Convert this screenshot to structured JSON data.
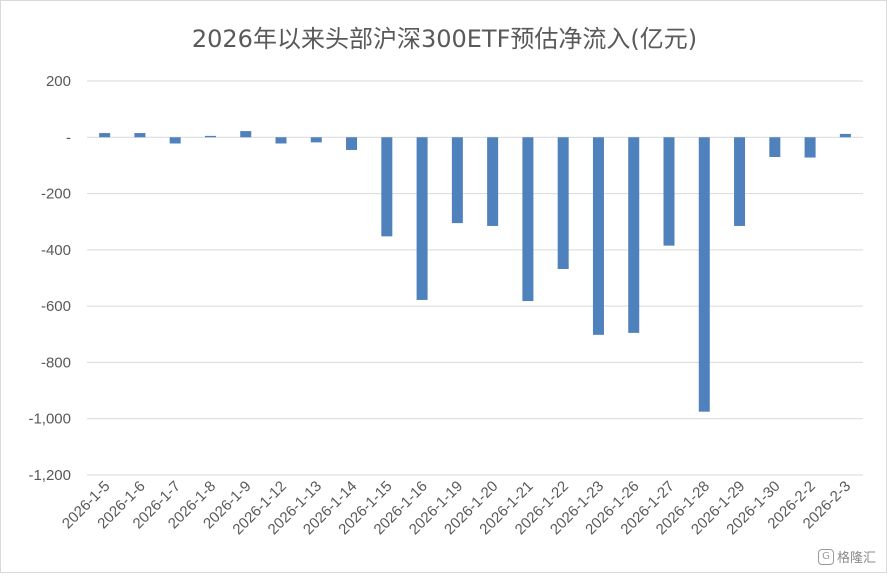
{
  "chart_data": {
    "type": "bar",
    "title": "2026年以来头部沪深300ETF预估净流入(亿元)",
    "categories": [
      "2026-1-5",
      "2026-1-6",
      "2026-1-7",
      "2026-1-8",
      "2026-1-9",
      "2026-1-12",
      "2026-1-13",
      "2026-1-14",
      "2026-1-15",
      "2026-1-16",
      "2026-1-19",
      "2026-1-20",
      "2026-1-21",
      "2026-1-22",
      "2026-1-23",
      "2026-1-26",
      "2026-1-27",
      "2026-1-28",
      "2026-1-29",
      "2026-1-30",
      "2026-2-2",
      "2026-2-3"
    ],
    "values": [
      15,
      15,
      -22,
      5,
      22,
      -22,
      -18,
      -45,
      -352,
      -578,
      -305,
      -315,
      -582,
      -468,
      -702,
      -695,
      -385,
      -975,
      -315,
      -70,
      -72,
      12
    ],
    "ylim": [
      -1200,
      200
    ],
    "yticks": [
      200,
      0,
      -200,
      -400,
      -600,
      -800,
      -1000,
      -1200
    ],
    "ytick_labels": [
      "200",
      "-",
      "-200",
      "-400",
      "-600",
      "-800",
      "-1,000",
      "-1,200"
    ],
    "xlabel": "",
    "ylabel": "",
    "grid": true,
    "bar_color": "#4f81bd",
    "grid_color": "#d9d9d9"
  },
  "watermark": {
    "icon": "G",
    "text": "格隆汇"
  }
}
